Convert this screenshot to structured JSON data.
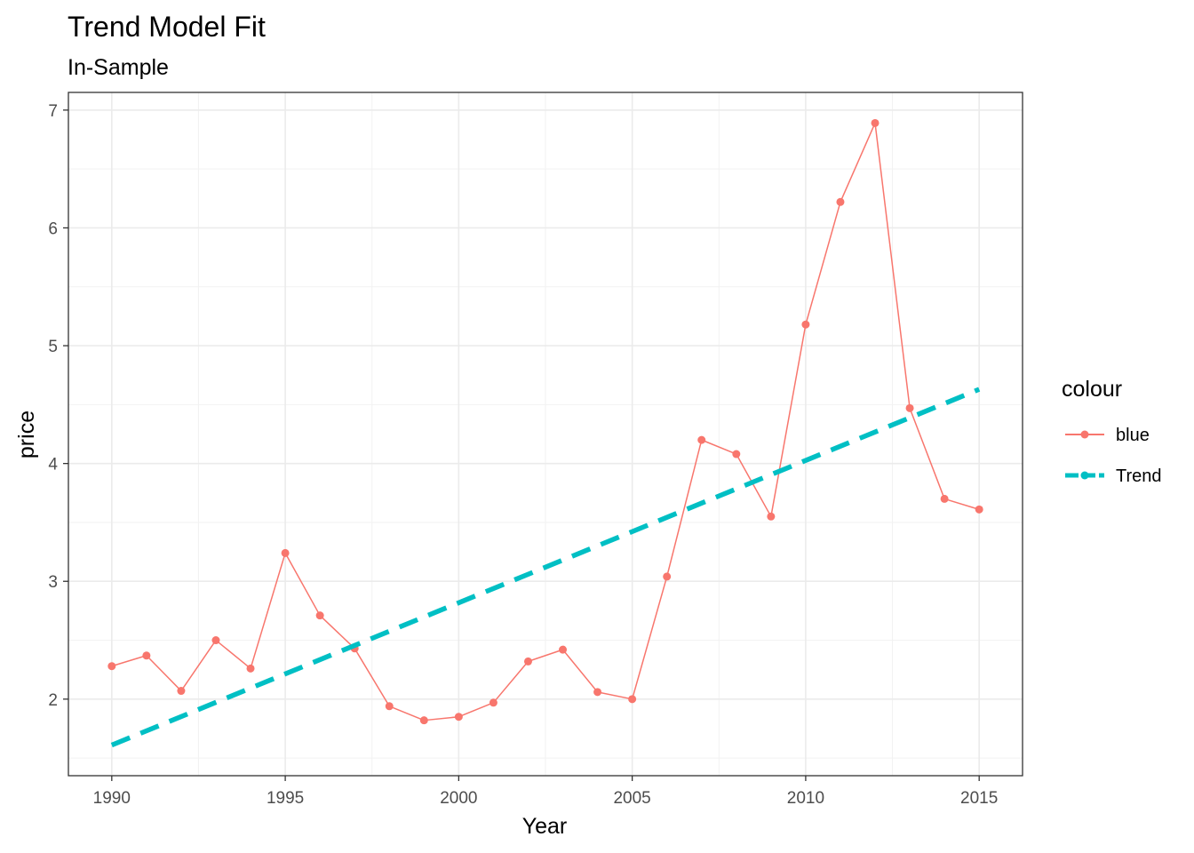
{
  "chart_data": {
    "type": "line",
    "title": "Trend Model Fit",
    "subtitle": "In-Sample",
    "xlabel": "Year",
    "ylabel": "price",
    "xlim": [
      1988.75,
      2016.25
    ],
    "ylim": [
      1.35,
      7.15
    ],
    "x_ticks": [
      1990,
      1995,
      2000,
      2005,
      2010,
      2015
    ],
    "y_ticks": [
      2,
      3,
      4,
      5,
      6,
      7
    ],
    "grid": true,
    "legend": {
      "title": "colour",
      "position": "right",
      "entries": [
        {
          "label": "blue",
          "color": "#F8766D",
          "style": "solid"
        },
        {
          "label": "Trend",
          "color": "#00BFC4",
          "style": "dashed"
        }
      ]
    },
    "series": [
      {
        "name": "blue",
        "color": "#F8766D",
        "style": "solid",
        "markers": true,
        "x": [
          1990,
          1991,
          1992,
          1993,
          1994,
          1995,
          1996,
          1997,
          1998,
          1999,
          2000,
          2001,
          2002,
          2003,
          2004,
          2005,
          2006,
          2007,
          2008,
          2009,
          2010,
          2011,
          2012,
          2013,
          2014,
          2015
        ],
        "y": [
          2.28,
          2.37,
          2.07,
          2.5,
          2.26,
          3.24,
          2.71,
          2.43,
          1.94,
          1.82,
          1.85,
          1.97,
          2.32,
          2.42,
          2.06,
          2.0,
          3.04,
          4.2,
          4.08,
          3.55,
          5.18,
          6.22,
          6.89,
          4.47,
          3.7,
          3.61
        ]
      },
      {
        "name": "Trend",
        "color": "#00BFC4",
        "style": "dashed",
        "markers": false,
        "x": [
          1990,
          2015
        ],
        "y": [
          1.61,
          4.63
        ]
      }
    ]
  }
}
